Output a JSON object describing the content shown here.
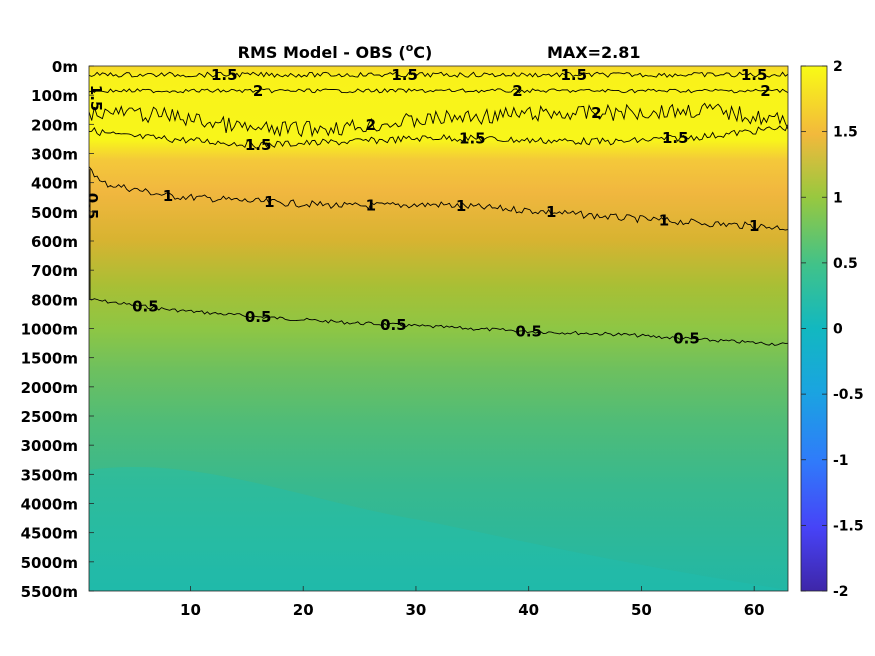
{
  "chart_data": {
    "type": "heatmap",
    "title": "RMS Model - OBS (°C)",
    "title_parts": {
      "main": "RMS Model - OBS (",
      "sup": "o",
      "end": "C)"
    },
    "max_label": "MAX=2.81",
    "x": {
      "ticks": [
        10,
        20,
        30,
        40,
        50,
        60
      ],
      "tick_labels": [
        "10",
        "20",
        "30",
        "40",
        "50",
        "60"
      ],
      "range": [
        1,
        63
      ]
    },
    "y": {
      "tick_labels": [
        "0m",
        "100m",
        "200m",
        "300m",
        "400m",
        "500m",
        "600m",
        "700m",
        "800m",
        "1000m",
        "1500m",
        "2000m",
        "2500m",
        "3000m",
        "3500m",
        "4000m",
        "4500m",
        "5000m",
        "5500m"
      ],
      "direction": "down"
    },
    "colorbar": {
      "ticks": [
        2,
        1.5,
        1,
        0.5,
        0,
        -0.5,
        -1,
        -1.5,
        -2
      ],
      "tick_labels": [
        "2",
        "1.5",
        "1",
        "0.5",
        "0",
        "-0.5",
        "-1",
        "-1.5",
        "-2"
      ],
      "range": [
        -2,
        2
      ],
      "colormap": "parula",
      "colors": [
        "#3e26a8",
        "#4743f7",
        "#2f7cfa",
        "#12b1d4",
        "#2bc1a0",
        "#81cc59",
        "#d9ba2f",
        "#fdbc3c",
        "#f9fb15"
      ]
    },
    "contours": [
      {
        "level": 0.5,
        "label": "0.5",
        "depth_index_by_x": [
          [
            1,
            8.0
          ],
          [
            8,
            8.35
          ],
          [
            16,
            8.6
          ],
          [
            24,
            8.8
          ],
          [
            32,
            8.95
          ],
          [
            40,
            9.1
          ],
          [
            48,
            9.2
          ],
          [
            56,
            9.4
          ],
          [
            63,
            9.55
          ]
        ],
        "labels_at_x": [
          6,
          16,
          28,
          40,
          54
        ],
        "left_edge_label_at_depth_index": 4.8
      },
      {
        "level": 1,
        "label": "1",
        "depth_index_by_x": [
          [
            1,
            3.4
          ],
          [
            2,
            4.0
          ],
          [
            8,
            4.45
          ],
          [
            16,
            4.65
          ],
          [
            24,
            4.8
          ],
          [
            32,
            4.75
          ],
          [
            40,
            4.95
          ],
          [
            48,
            5.2
          ],
          [
            56,
            5.4
          ],
          [
            63,
            5.55
          ]
        ],
        "labels_at_x": [
          8,
          17,
          26,
          34,
          42,
          52,
          60
        ]
      },
      {
        "level": 1.5,
        "label": "1.5",
        "depth_index_by_x": [
          [
            1,
            2.2
          ],
          [
            4,
            2.4
          ],
          [
            8,
            2.5
          ],
          [
            16,
            2.7
          ],
          [
            24,
            2.6
          ],
          [
            32,
            2.45
          ],
          [
            40,
            2.55
          ],
          [
            48,
            2.6
          ],
          [
            56,
            2.4
          ],
          [
            63,
            2.1
          ]
        ],
        "labels_at_x": [
          16,
          35,
          53
        ],
        "top_line": {
          "depth_index": 0.3,
          "labels_at_x": [
            13,
            29,
            44,
            60
          ]
        }
      },
      {
        "level": 2,
        "label": "2",
        "top_depth_index": 0.85,
        "bottom_depth_index_by_x": [
          [
            3,
            1.6
          ],
          [
            8,
            1.7
          ],
          [
            16,
            2.2
          ],
          [
            24,
            2.1
          ],
          [
            32,
            1.8
          ],
          [
            40,
            1.65
          ],
          [
            48,
            1.6
          ],
          [
            56,
            1.5
          ],
          [
            63,
            1.9
          ]
        ],
        "labels_at_x": [
          16,
          26,
          39,
          46,
          61
        ]
      }
    ],
    "field_description_values": {
      "surface_band": 2.1,
      "upper_100_200m": 2.2,
      "depth_300_400m": 1.4,
      "depth_500_700m": 0.85,
      "depth_1000_2000m": 0.45,
      "depth_3000_5500m": 0.25
    }
  }
}
